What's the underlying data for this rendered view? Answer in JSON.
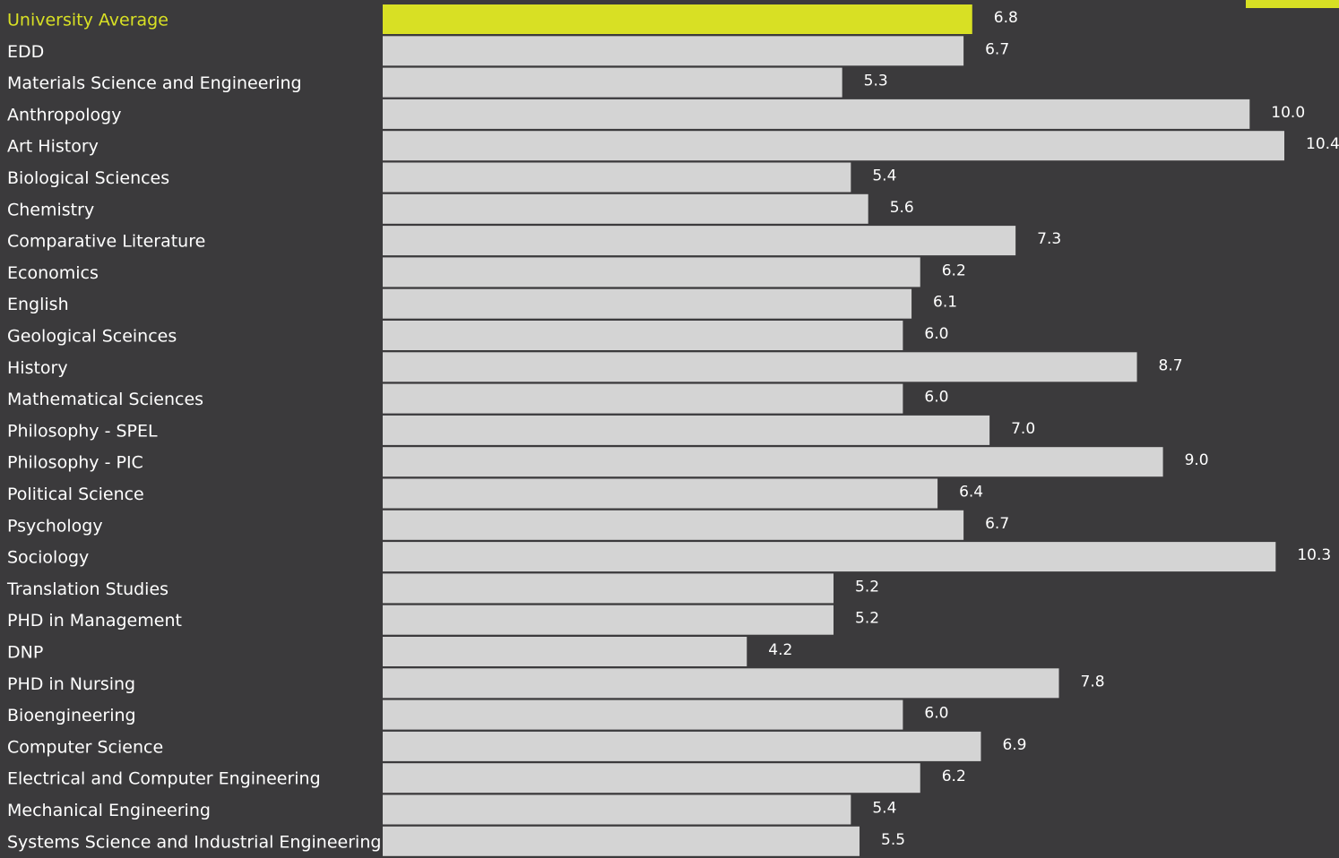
{
  "chart_data": {
    "type": "bar",
    "orientation": "horizontal",
    "categories": [
      "University Average",
      "EDD",
      "Materials Science and Engineering",
      "Anthropology",
      "Art History",
      "Biological Sciences",
      "Chemistry",
      "Comparative Literature",
      "Economics",
      "English",
      "Geological Sceinces",
      "History",
      "Mathematical Sciences",
      "Philosophy - SPEL",
      "Philosophy - PIC",
      "Political Science",
      "Psychology",
      "Sociology",
      "Translation Studies",
      "PHD in Management",
      "DNP",
      "PHD in Nursing",
      "Bioengineering",
      "Computer Science",
      "Electrical and Computer Engineering",
      "Mechanical Engineering",
      "Systems Science and Industrial Engineering"
    ],
    "values": [
      6.8,
      6.7,
      5.3,
      10.0,
      10.4,
      5.4,
      5.6,
      7.3,
      6.2,
      6.1,
      6.0,
      8.7,
      6.0,
      7.0,
      9.0,
      6.4,
      6.7,
      10.3,
      5.2,
      5.2,
      4.2,
      7.8,
      6.0,
      6.9,
      6.2,
      5.4,
      5.5
    ],
    "value_labels": [
      "6.8",
      "6.7",
      "5.3",
      "10.0",
      "10.4",
      "5.4",
      "5.6",
      "7.3",
      "6.2",
      "6.1",
      "6.0",
      "8.7",
      "6.0",
      "7.0",
      "9.0",
      "6.4",
      "6.7",
      "10.3",
      "5.2",
      "5.2",
      "4.2",
      "7.8",
      "6.0",
      "6.9",
      "6.2",
      "5.4",
      "5.5"
    ],
    "highlight_index": 0,
    "xlim": [
      0,
      10.4
    ],
    "grid": false,
    "colors": {
      "background": "#3b3a3c",
      "bar": "#d4d4d4",
      "highlight_bar": "#d8e024",
      "text": "#ffffff",
      "highlight_text": "#d8e024"
    }
  }
}
